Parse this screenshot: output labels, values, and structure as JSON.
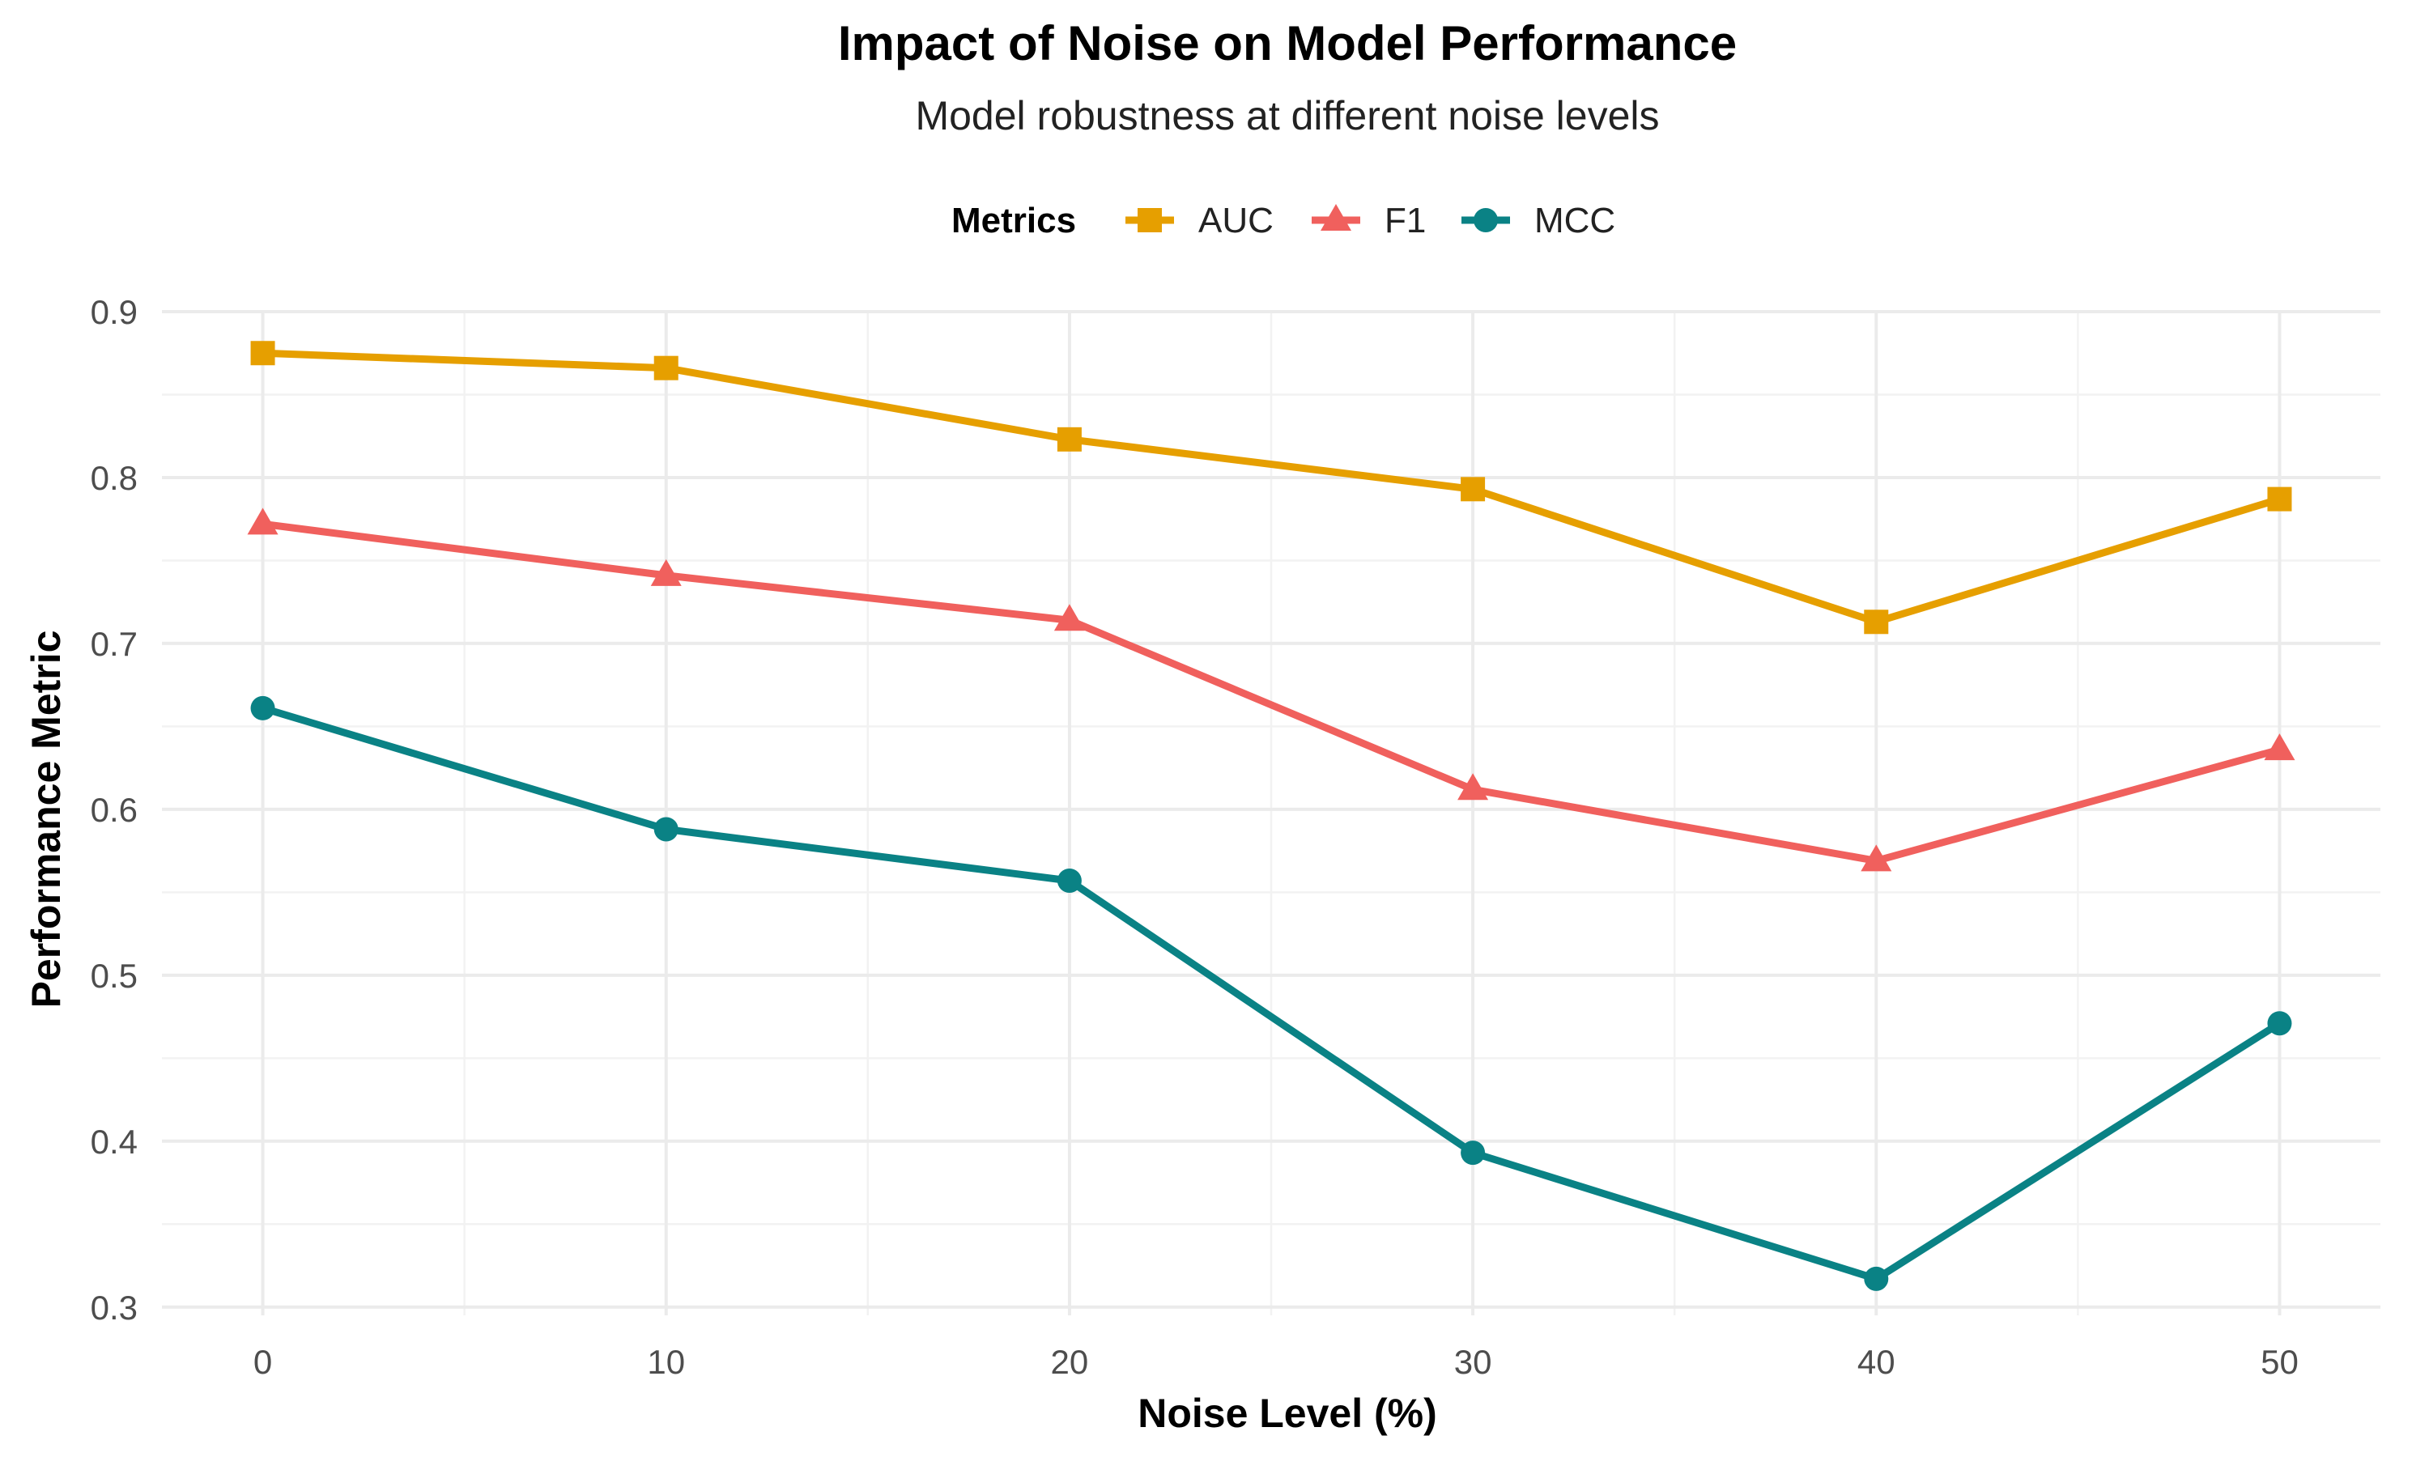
{
  "chart_data": {
    "type": "line",
    "title": "Impact of Noise on Model Performance",
    "subtitle": "Model robustness at different noise levels",
    "xlabel": "Noise Level (%)",
    "ylabel": "Performance Metric",
    "x": [
      0,
      10,
      20,
      30,
      40,
      50
    ],
    "xlim": [
      -2.5,
      52.5
    ],
    "ylim": [
      0.295,
      0.9
    ],
    "xticks": [
      0,
      10,
      20,
      30,
      40,
      50
    ],
    "yticks": [
      0.3,
      0.4,
      0.5,
      0.6,
      0.7,
      0.8,
      0.9
    ],
    "grid": true,
    "legend": {
      "title": "Metrics",
      "position": "top"
    },
    "series": [
      {
        "name": "AUC",
        "color": "#E69F00",
        "marker": "square",
        "values": [
          0.875,
          0.866,
          0.823,
          0.793,
          0.713,
          0.787
        ]
      },
      {
        "name": "F1",
        "color": "#F0605D",
        "marker": "triangle",
        "values": [
          0.772,
          0.741,
          0.714,
          0.612,
          0.569,
          0.636
        ]
      },
      {
        "name": "MCC",
        "color": "#0A8285",
        "marker": "circle",
        "values": [
          0.661,
          0.588,
          0.557,
          0.393,
          0.317,
          0.471
        ]
      }
    ]
  }
}
